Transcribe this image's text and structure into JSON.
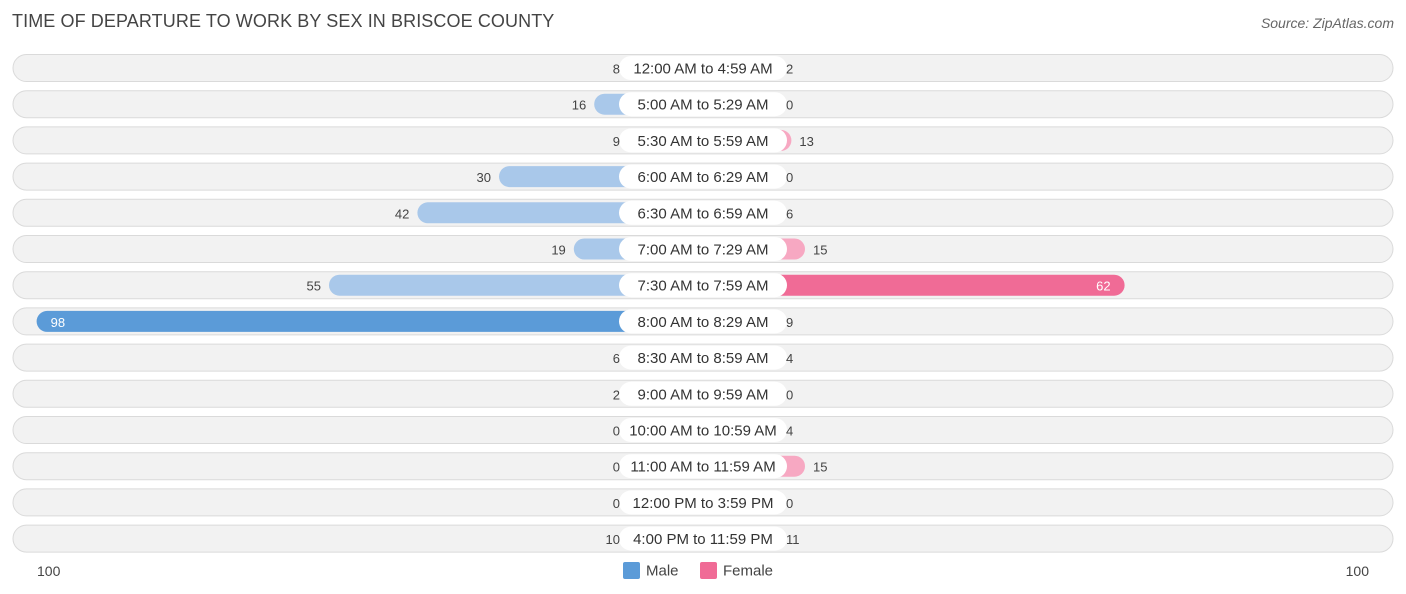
{
  "chart_data": {
    "type": "bar",
    "orientation": "horizontal-diverging",
    "title": "TIME OF DEPARTURE TO WORK BY SEX IN BRISCOE COUNTY",
    "source": "Source: ZipAtlas.com",
    "categories": [
      "12:00 AM to 4:59 AM",
      "5:00 AM to 5:29 AM",
      "5:30 AM to 5:59 AM",
      "6:00 AM to 6:29 AM",
      "6:30 AM to 6:59 AM",
      "7:00 AM to 7:29 AM",
      "7:30 AM to 7:59 AM",
      "8:00 AM to 8:29 AM",
      "8:30 AM to 8:59 AM",
      "9:00 AM to 9:59 AM",
      "10:00 AM to 10:59 AM",
      "11:00 AM to 11:59 AM",
      "12:00 PM to 3:59 PM",
      "4:00 PM to 11:59 PM"
    ],
    "series": [
      {
        "name": "Male",
        "color": "#5b9bd8",
        "color_light": "#a9c8ea",
        "values": [
          8,
          16,
          9,
          30,
          42,
          19,
          55,
          98,
          6,
          2,
          0,
          0,
          0,
          10
        ]
      },
      {
        "name": "Female",
        "color": "#f06b96",
        "color_light": "#f7a8c2",
        "values": [
          2,
          0,
          13,
          0,
          6,
          15,
          62,
          9,
          4,
          0,
          4,
          15,
          0,
          11
        ]
      }
    ],
    "axis": {
      "left_label": "100",
      "right_label": "100",
      "max": 100
    },
    "legend": [
      "Male",
      "Female"
    ],
    "legend_position": "bottom-center"
  }
}
